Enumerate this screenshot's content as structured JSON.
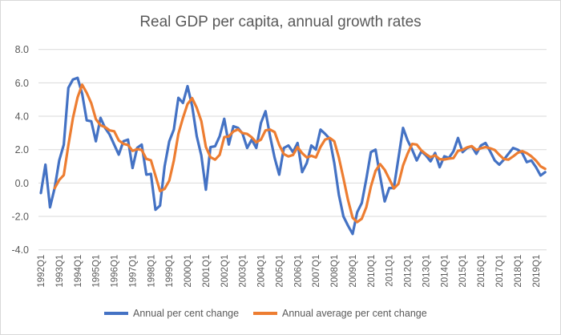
{
  "chart_data": {
    "type": "line",
    "title": "Real GDP per capita, annual growth rates",
    "xlabel": "",
    "ylabel": "",
    "ylim": [
      -4.0,
      8.0
    ],
    "yticks": [
      "-4.0",
      "-2.0",
      "0.0",
      "2.0",
      "4.0",
      "6.0",
      "8.0"
    ],
    "grid": true,
    "legend": "bottom",
    "x_tick_labels": [
      "1992Q1",
      "1993Q1",
      "1994Q1",
      "1995Q1",
      "1996Q1",
      "1997Q1",
      "1998Q1",
      "1999Q1",
      "2000Q1",
      "2001Q1",
      "2002Q1",
      "2003Q1",
      "2004Q1",
      "2005Q1",
      "2006Q1",
      "2007Q1",
      "2008Q1",
      "2009Q1",
      "2010Q1",
      "2011Q1",
      "2012Q1",
      "2013Q1",
      "2014Q1",
      "2015Q1",
      "2016Q1",
      "2017Q1",
      "2018Q1",
      "2019Q1"
    ],
    "categories": [
      "1992Q1",
      "1992Q2",
      "1992Q3",
      "1992Q4",
      "1993Q1",
      "1993Q2",
      "1993Q3",
      "1993Q4",
      "1994Q1",
      "1994Q2",
      "1994Q3",
      "1994Q4",
      "1995Q1",
      "1995Q2",
      "1995Q3",
      "1995Q4",
      "1996Q1",
      "1996Q2",
      "1996Q3",
      "1996Q4",
      "1997Q1",
      "1997Q2",
      "1997Q3",
      "1997Q4",
      "1998Q1",
      "1998Q2",
      "1998Q3",
      "1998Q4",
      "1999Q1",
      "1999Q2",
      "1999Q3",
      "1999Q4",
      "2000Q1",
      "2000Q2",
      "2000Q3",
      "2000Q4",
      "2001Q1",
      "2001Q2",
      "2001Q3",
      "2001Q4",
      "2002Q1",
      "2002Q2",
      "2002Q3",
      "2002Q4",
      "2003Q1",
      "2003Q2",
      "2003Q3",
      "2003Q4",
      "2004Q1",
      "2004Q2",
      "2004Q3",
      "2004Q4",
      "2005Q1",
      "2005Q2",
      "2005Q3",
      "2005Q4",
      "2006Q1",
      "2006Q2",
      "2006Q3",
      "2006Q4",
      "2007Q1",
      "2007Q2",
      "2007Q3",
      "2007Q4",
      "2008Q1",
      "2008Q2",
      "2008Q3",
      "2008Q4",
      "2009Q1",
      "2009Q2",
      "2009Q3",
      "2009Q4",
      "2010Q1",
      "2010Q2",
      "2010Q3",
      "2010Q4",
      "2011Q1",
      "2011Q2",
      "2011Q3",
      "2011Q4",
      "2012Q1",
      "2012Q2",
      "2012Q3",
      "2012Q4",
      "2013Q1",
      "2013Q2",
      "2013Q3",
      "2013Q4",
      "2014Q1",
      "2014Q2",
      "2014Q3",
      "2014Q4",
      "2015Q1",
      "2015Q2",
      "2015Q3",
      "2015Q4",
      "2016Q1",
      "2016Q2",
      "2016Q3",
      "2016Q4",
      "2017Q1",
      "2017Q2",
      "2017Q3",
      "2017Q4",
      "2018Q1",
      "2018Q2",
      "2018Q3",
      "2018Q4",
      "2019Q1",
      "2019Q2",
      "2019Q3"
    ],
    "series": [
      {
        "name": "Annual per cent change",
        "color": "#4472c4",
        "values": [
          -0.6,
          1.1,
          -1.45,
          -0.3,
          1.35,
          2.3,
          5.7,
          6.2,
          6.3,
          5.35,
          3.75,
          3.7,
          2.5,
          3.9,
          3.3,
          2.9,
          2.3,
          1.7,
          2.5,
          2.6,
          0.9,
          2.1,
          2.3,
          0.5,
          0.55,
          -1.6,
          -1.35,
          1.0,
          2.5,
          3.2,
          5.1,
          4.8,
          5.8,
          4.6,
          2.8,
          1.65,
          -0.4,
          2.15,
          2.2,
          2.8,
          3.85,
          2.3,
          3.4,
          3.3,
          2.95,
          2.1,
          2.6,
          2.1,
          3.6,
          4.3,
          2.8,
          1.5,
          0.5,
          2.1,
          2.25,
          1.85,
          2.4,
          0.65,
          1.2,
          2.25,
          2.0,
          3.2,
          2.95,
          2.65,
          1.2,
          -0.7,
          -2.0,
          -2.55,
          -3.05,
          -1.75,
          -1.2,
          0.25,
          1.85,
          2.0,
          0.4,
          -1.1,
          -0.3,
          -0.3,
          1.5,
          3.3,
          2.55,
          2.0,
          1.35,
          1.9,
          1.65,
          1.3,
          1.8,
          0.95,
          1.6,
          1.5,
          1.9,
          2.7,
          1.85,
          2.1,
          2.2,
          1.75,
          2.25,
          2.4,
          1.9,
          1.35,
          1.1,
          1.4,
          1.75,
          2.1,
          2.0,
          1.8,
          1.25,
          1.35,
          0.95,
          0.45,
          0.65
        ]
      },
      {
        "name": "Annual average per cent change",
        "color": "#ed7d31",
        "values": [
          null,
          null,
          null,
          -0.31,
          0.18,
          0.48,
          2.26,
          3.89,
          5.13,
          5.89,
          5.4,
          4.78,
          3.83,
          3.46,
          3.35,
          3.15,
          3.1,
          2.55,
          2.35,
          2.28,
          1.93,
          2.03,
          1.98,
          1.45,
          1.36,
          0.44,
          -0.48,
          -0.35,
          0.14,
          1.34,
          2.95,
          3.9,
          4.73,
          5.08,
          4.5,
          3.71,
          2.16,
          1.55,
          1.4,
          1.69,
          2.75,
          2.79,
          3.09,
          3.21,
          2.99,
          2.94,
          2.74,
          2.44,
          2.6,
          3.15,
          3.2,
          3.05,
          2.28,
          1.73,
          1.59,
          1.68,
          2.15,
          1.79,
          1.53,
          1.63,
          1.53,
          2.16,
          2.6,
          2.7,
          2.5,
          1.53,
          0.29,
          -1.01,
          -2.08,
          -2.34,
          -2.14,
          -1.44,
          -0.21,
          0.73,
          1.13,
          0.79,
          0.25,
          -0.33,
          -0.05,
          1.05,
          1.76,
          2.34,
          2.3,
          1.95,
          1.73,
          1.55,
          1.66,
          1.43,
          1.41,
          1.46,
          1.49,
          1.93,
          1.99,
          2.14,
          2.21,
          1.98,
          2.08,
          2.15,
          2.08,
          1.98,
          1.69,
          1.44,
          1.4,
          1.59,
          1.81,
          1.91,
          1.79,
          1.6,
          1.34,
          1.0,
          0.85
        ]
      }
    ]
  }
}
